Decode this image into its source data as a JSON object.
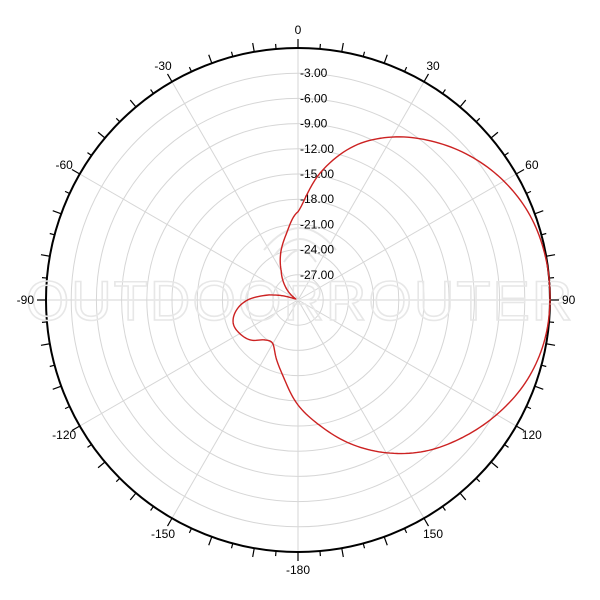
{
  "chart_data": {
    "type": "polar",
    "title": "",
    "angle_ticks": [
      {
        "deg": 0,
        "label": "0"
      },
      {
        "deg": 30,
        "label": "30"
      },
      {
        "deg": 60,
        "label": "60"
      },
      {
        "deg": 90,
        "label": "90"
      },
      {
        "deg": 120,
        "label": "120"
      },
      {
        "deg": 150,
        "label": "150"
      },
      {
        "deg": 180,
        "label": "-180"
      },
      {
        "deg": 210,
        "label": "-150"
      },
      {
        "deg": 240,
        "label": "-120"
      },
      {
        "deg": 270,
        "label": "-90"
      },
      {
        "deg": 300,
        "label": "-60"
      },
      {
        "deg": 330,
        "label": "-30"
      }
    ],
    "radial_range_db": [
      -30,
      0
    ],
    "radial_ticks": [
      "-3.00",
      "-6.00",
      "-9.00",
      "-12.00",
      "-15.00",
      "-18.00",
      "-21.00",
      "-24.00",
      "-27.00"
    ],
    "grid": true,
    "series": [
      {
        "color": "#cc2222",
        "points": [
          {
            "angle": 0,
            "db": -19.5
          },
          {
            "angle": 10,
            "db": -14.6
          },
          {
            "angle": 20,
            "db": -10.5
          },
          {
            "angle": 30,
            "db": -7.6
          },
          {
            "angle": 40,
            "db": -5.3
          },
          {
            "angle": 50,
            "db": -3.3
          },
          {
            "angle": 60,
            "db": -1.7
          },
          {
            "angle": 70,
            "db": -0.6
          },
          {
            "angle": 80,
            "db": -0.1
          },
          {
            "angle": 90,
            "db": 0.0
          },
          {
            "angle": 100,
            "db": -0.3
          },
          {
            "angle": 110,
            "db": -1.2
          },
          {
            "angle": 120,
            "db": -2.7
          },
          {
            "angle": 130,
            "db": -4.5
          },
          {
            "angle": 140,
            "db": -6.5
          },
          {
            "angle": 150,
            "db": -9.0
          },
          {
            "angle": 160,
            "db": -11.8
          },
          {
            "angle": 170,
            "db": -14.8
          },
          {
            "angle": 180,
            "db": -17.5
          },
          {
            "angle": 190,
            "db": -20.5
          },
          {
            "angle": 200,
            "db": -22.5
          },
          {
            "angle": 210,
            "db": -24.0
          },
          {
            "angle": 220,
            "db": -23.8
          },
          {
            "angle": 230,
            "db": -22.6
          },
          {
            "angle": 240,
            "db": -22.0
          },
          {
            "angle": 250,
            "db": -21.8
          },
          {
            "angle": 260,
            "db": -22.5
          },
          {
            "angle": 270,
            "db": -24.0
          },
          {
            "angle": 280,
            "db": -26.5
          },
          {
            "angle": 285,
            "db": -28.0
          },
          {
            "angle": 290,
            "db": -29.5
          },
          {
            "angle": 300,
            "db": -29.5
          },
          {
            "angle": 315,
            "db": -28.0
          },
          {
            "angle": 330,
            "db": -26.0
          },
          {
            "angle": 340,
            "db": -24.0
          },
          {
            "angle": 350,
            "db": -22.0
          },
          {
            "angle": 360,
            "db": -19.5
          }
        ]
      }
    ]
  },
  "watermark": {
    "text": "OUTDOORROUTER"
  }
}
